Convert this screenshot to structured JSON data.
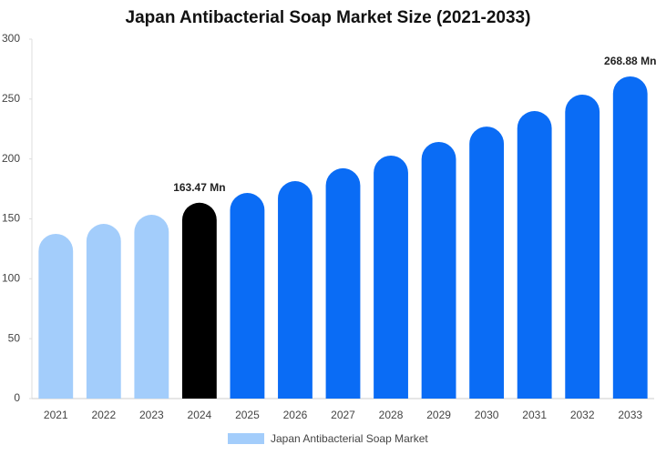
{
  "chart_data": {
    "type": "bar",
    "title": "Japan Antibacterial Soap Market Size (2021-2033)",
    "categories": [
      "2021",
      "2022",
      "2023",
      "2024",
      "2025",
      "2026",
      "2027",
      "2028",
      "2029",
      "2030",
      "2031",
      "2032",
      "2033"
    ],
    "series": [
      {
        "name": "Japan Antibacterial Soap Market",
        "color": "#a3cdfb",
        "colors": [
          "#a3cdfb",
          "#a3cdfb",
          "#a3cdfb",
          "#000000",
          "#0a6cf5",
          "#0a6cf5",
          "#0a6cf5",
          "#0a6cf5",
          "#0a6cf5",
          "#0a6cf5",
          "#0a6cf5",
          "#0a6cf5",
          "#0a6cf5"
        ],
        "values": [
          137.5,
          145.8,
          153.4,
          163.47,
          171.6,
          181.5,
          192.2,
          202.8,
          214.2,
          227,
          240,
          253.7,
          268.88
        ],
        "value_labels": [
          null,
          null,
          null,
          "163.47 Mn",
          null,
          null,
          null,
          null,
          null,
          null,
          null,
          null,
          "268.88 Mn"
        ]
      }
    ],
    "ylim": [
      0,
      300
    ],
    "yticks": [
      0,
      50,
      100,
      150,
      200,
      250,
      300
    ],
    "grid": false
  }
}
